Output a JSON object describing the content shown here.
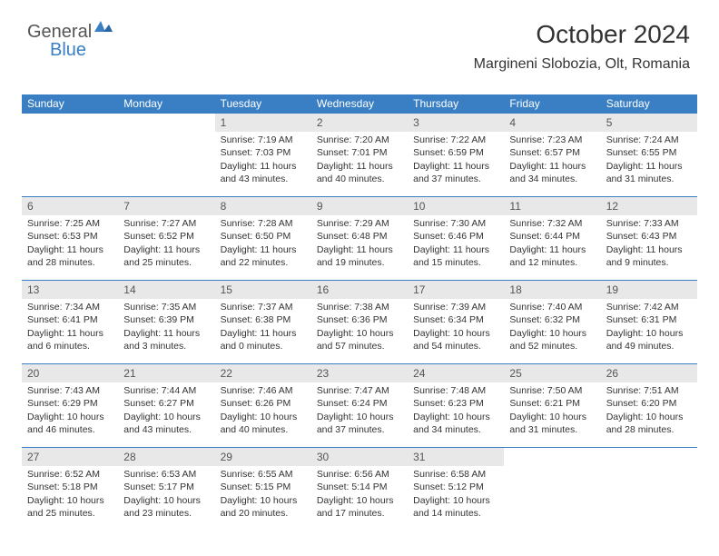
{
  "logo": {
    "word1": "General",
    "word2": "Blue"
  },
  "header": {
    "month_title": "October 2024",
    "location": "Margineni Slobozia, Olt, Romania"
  },
  "colors": {
    "header_blue": "#3a7fc4",
    "daynum_bg": "#e8e8e8",
    "text": "#333333",
    "logo_gray": "#555555",
    "logo_blue": "#3a7fc4",
    "background": "#ffffff"
  },
  "calendar": {
    "day_headers": [
      "Sunday",
      "Monday",
      "Tuesday",
      "Wednesday",
      "Thursday",
      "Friday",
      "Saturday"
    ],
    "weeks": [
      [
        {
          "empty": true
        },
        {
          "empty": true
        },
        {
          "num": "1",
          "sunrise": "7:19 AM",
          "sunset": "7:03 PM",
          "daylight": "11 hours and 43 minutes."
        },
        {
          "num": "2",
          "sunrise": "7:20 AM",
          "sunset": "7:01 PM",
          "daylight": "11 hours and 40 minutes."
        },
        {
          "num": "3",
          "sunrise": "7:22 AM",
          "sunset": "6:59 PM",
          "daylight": "11 hours and 37 minutes."
        },
        {
          "num": "4",
          "sunrise": "7:23 AM",
          "sunset": "6:57 PM",
          "daylight": "11 hours and 34 minutes."
        },
        {
          "num": "5",
          "sunrise": "7:24 AM",
          "sunset": "6:55 PM",
          "daylight": "11 hours and 31 minutes."
        }
      ],
      [
        {
          "num": "6",
          "sunrise": "7:25 AM",
          "sunset": "6:53 PM",
          "daylight": "11 hours and 28 minutes."
        },
        {
          "num": "7",
          "sunrise": "7:27 AM",
          "sunset": "6:52 PM",
          "daylight": "11 hours and 25 minutes."
        },
        {
          "num": "8",
          "sunrise": "7:28 AM",
          "sunset": "6:50 PM",
          "daylight": "11 hours and 22 minutes."
        },
        {
          "num": "9",
          "sunrise": "7:29 AM",
          "sunset": "6:48 PM",
          "daylight": "11 hours and 19 minutes."
        },
        {
          "num": "10",
          "sunrise": "7:30 AM",
          "sunset": "6:46 PM",
          "daylight": "11 hours and 15 minutes."
        },
        {
          "num": "11",
          "sunrise": "7:32 AM",
          "sunset": "6:44 PM",
          "daylight": "11 hours and 12 minutes."
        },
        {
          "num": "12",
          "sunrise": "7:33 AM",
          "sunset": "6:43 PM",
          "daylight": "11 hours and 9 minutes."
        }
      ],
      [
        {
          "num": "13",
          "sunrise": "7:34 AM",
          "sunset": "6:41 PM",
          "daylight": "11 hours and 6 minutes."
        },
        {
          "num": "14",
          "sunrise": "7:35 AM",
          "sunset": "6:39 PM",
          "daylight": "11 hours and 3 minutes."
        },
        {
          "num": "15",
          "sunrise": "7:37 AM",
          "sunset": "6:38 PM",
          "daylight": "11 hours and 0 minutes."
        },
        {
          "num": "16",
          "sunrise": "7:38 AM",
          "sunset": "6:36 PM",
          "daylight": "10 hours and 57 minutes."
        },
        {
          "num": "17",
          "sunrise": "7:39 AM",
          "sunset": "6:34 PM",
          "daylight": "10 hours and 54 minutes."
        },
        {
          "num": "18",
          "sunrise": "7:40 AM",
          "sunset": "6:32 PM",
          "daylight": "10 hours and 52 minutes."
        },
        {
          "num": "19",
          "sunrise": "7:42 AM",
          "sunset": "6:31 PM",
          "daylight": "10 hours and 49 minutes."
        }
      ],
      [
        {
          "num": "20",
          "sunrise": "7:43 AM",
          "sunset": "6:29 PM",
          "daylight": "10 hours and 46 minutes."
        },
        {
          "num": "21",
          "sunrise": "7:44 AM",
          "sunset": "6:27 PM",
          "daylight": "10 hours and 43 minutes."
        },
        {
          "num": "22",
          "sunrise": "7:46 AM",
          "sunset": "6:26 PM",
          "daylight": "10 hours and 40 minutes."
        },
        {
          "num": "23",
          "sunrise": "7:47 AM",
          "sunset": "6:24 PM",
          "daylight": "10 hours and 37 minutes."
        },
        {
          "num": "24",
          "sunrise": "7:48 AM",
          "sunset": "6:23 PM",
          "daylight": "10 hours and 34 minutes."
        },
        {
          "num": "25",
          "sunrise": "7:50 AM",
          "sunset": "6:21 PM",
          "daylight": "10 hours and 31 minutes."
        },
        {
          "num": "26",
          "sunrise": "7:51 AM",
          "sunset": "6:20 PM",
          "daylight": "10 hours and 28 minutes."
        }
      ],
      [
        {
          "num": "27",
          "sunrise": "6:52 AM",
          "sunset": "5:18 PM",
          "daylight": "10 hours and 25 minutes."
        },
        {
          "num": "28",
          "sunrise": "6:53 AM",
          "sunset": "5:17 PM",
          "daylight": "10 hours and 23 minutes."
        },
        {
          "num": "29",
          "sunrise": "6:55 AM",
          "sunset": "5:15 PM",
          "daylight": "10 hours and 20 minutes."
        },
        {
          "num": "30",
          "sunrise": "6:56 AM",
          "sunset": "5:14 PM",
          "daylight": "10 hours and 17 minutes."
        },
        {
          "num": "31",
          "sunrise": "6:58 AM",
          "sunset": "5:12 PM",
          "daylight": "10 hours and 14 minutes."
        },
        {
          "empty": true
        },
        {
          "empty": true
        }
      ]
    ]
  }
}
